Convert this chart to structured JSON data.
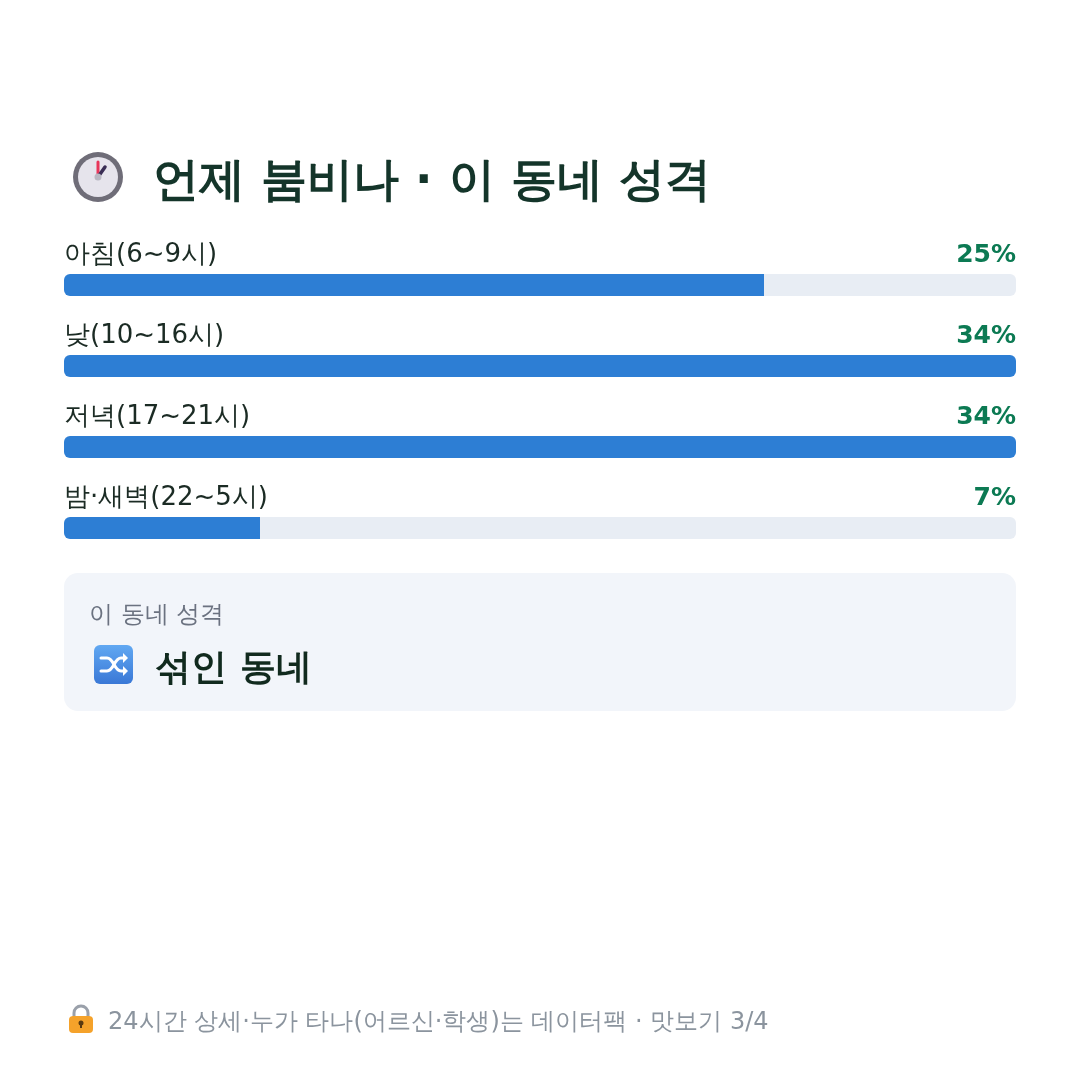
{
  "chart_data": {
    "type": "bar",
    "orientation": "horizontal",
    "title": "언제 붐비나 · 이 동네 성격",
    "categories": [
      "아침(6~9시)",
      "낮(10~16시)",
      "저녁(17~21시)",
      "밤·새벽(22~5시)"
    ],
    "values": [
      25,
      34,
      34,
      7
    ],
    "value_labels": [
      "25%",
      "34%",
      "34%",
      "7%"
    ],
    "color": "#2d7ed4",
    "xlim": [
      0,
      34
    ],
    "tick_labels": "y",
    "annotations": [
      "이 동네 성격",
      "섞인 동네",
      "24시간 상세·누가 타나(어르신·학생)는 데이터팩 · 맛보기 3/4"
    ]
  }
}
